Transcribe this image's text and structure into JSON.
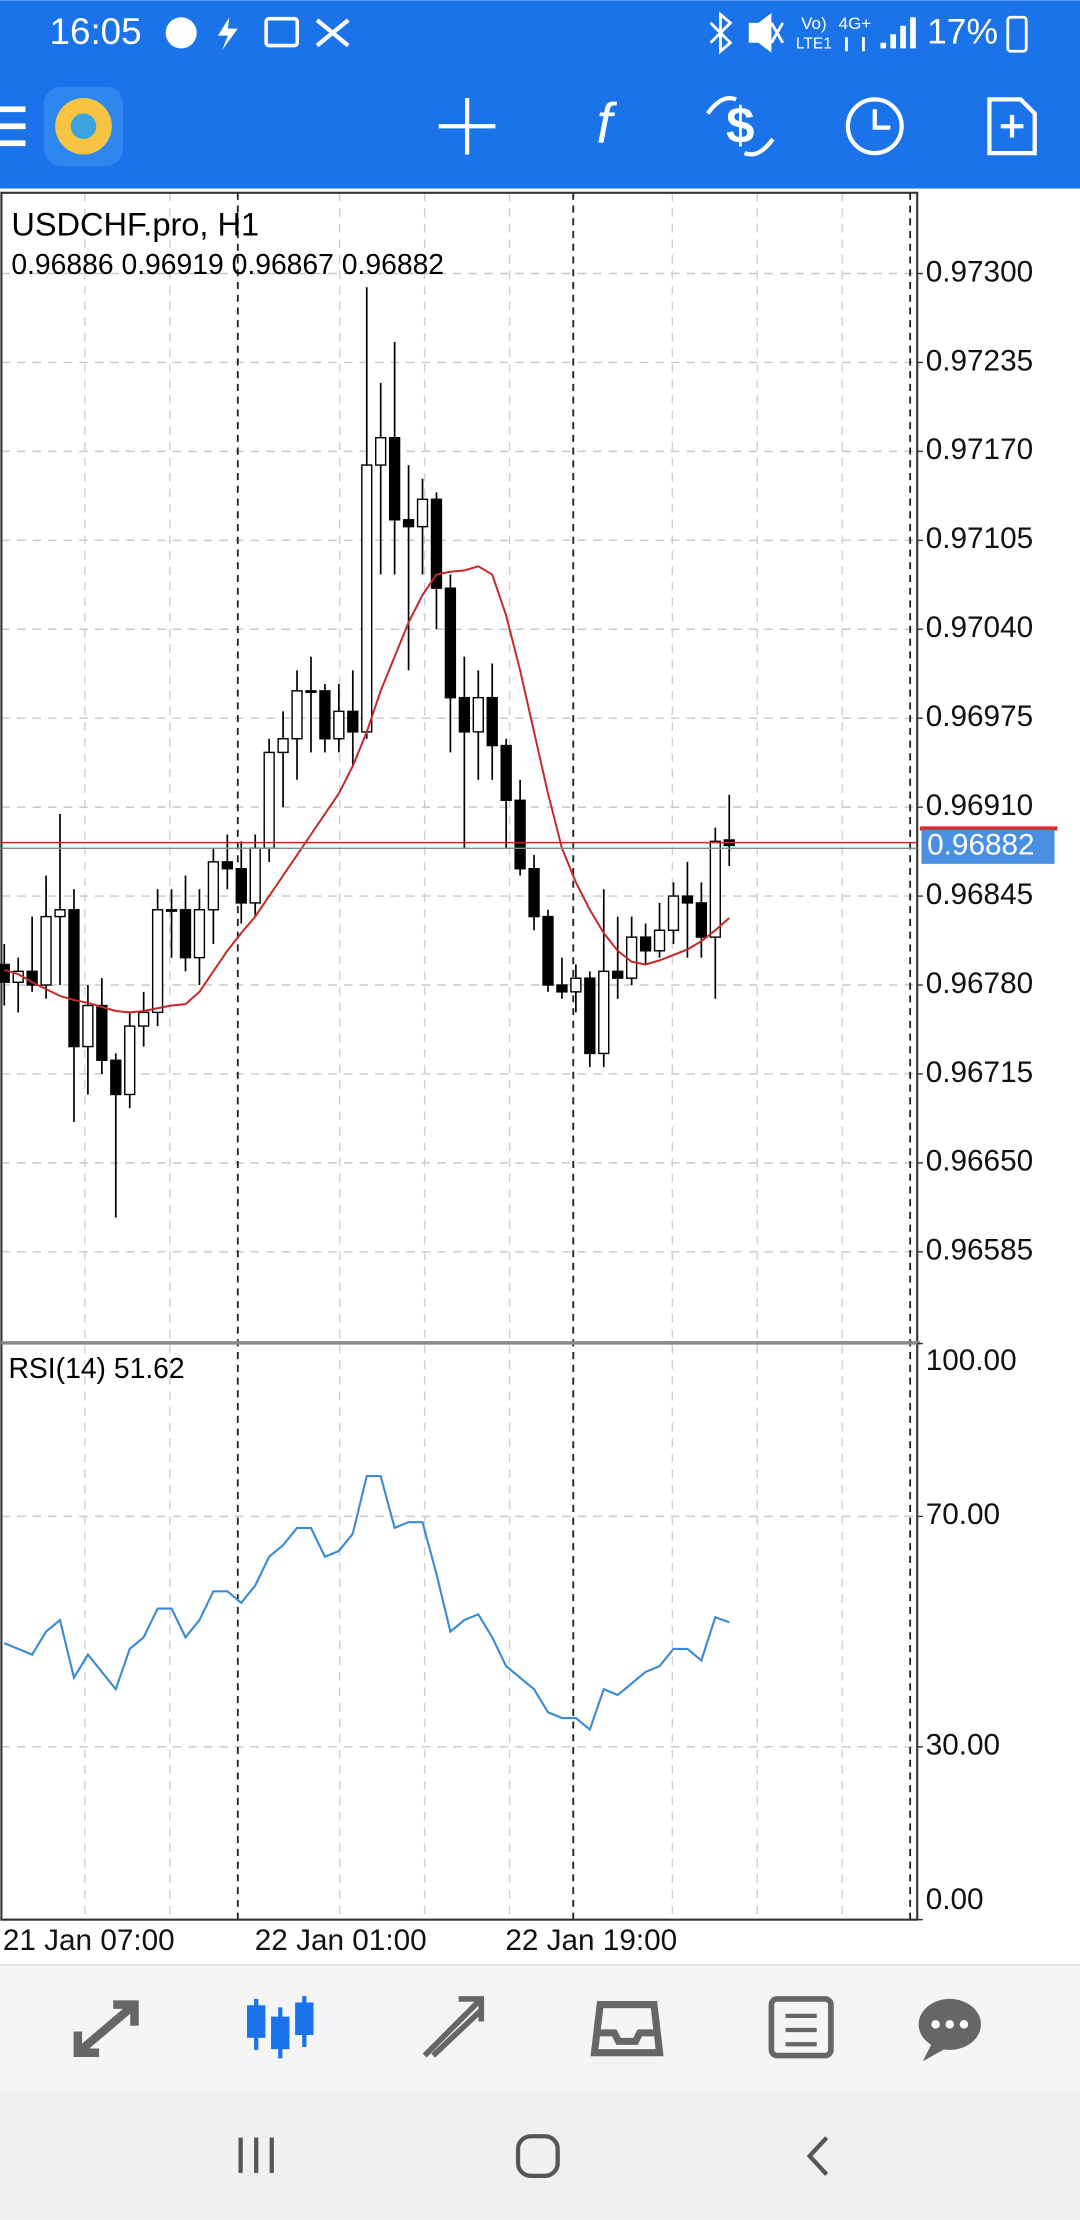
{
  "status_bar": {
    "time": "16:05",
    "volte": "Vo)",
    "lte": "LTE1",
    "network": "4G+",
    "battery": "17%"
  },
  "chart_data": [
    {
      "type": "candlestick",
      "title": "USDCHF.pro, H1",
      "subtitle": "0.96886 0.96919 0.96867 0.96882",
      "up_color": "#ffffff",
      "down_color": "#000000",
      "ma_color": "#c62828",
      "ohlc": [
        [
          0.96795,
          0.9681,
          0.96765,
          0.96782
        ],
        [
          0.96782,
          0.968,
          0.9676,
          0.9679
        ],
        [
          0.9679,
          0.9683,
          0.96775,
          0.9678
        ],
        [
          0.9678,
          0.9686,
          0.9677,
          0.9683
        ],
        [
          0.9683,
          0.96905,
          0.9678,
          0.96835
        ],
        [
          0.96835,
          0.9685,
          0.9668,
          0.96735
        ],
        [
          0.96735,
          0.9678,
          0.967,
          0.96765
        ],
        [
          0.96765,
          0.96785,
          0.96715,
          0.96725
        ],
        [
          0.96725,
          0.9673,
          0.9661,
          0.967
        ],
        [
          0.967,
          0.9676,
          0.9669,
          0.9675
        ],
        [
          0.9675,
          0.96775,
          0.96735,
          0.9676
        ],
        [
          0.9676,
          0.9685,
          0.9675,
          0.96835
        ],
        [
          0.96835,
          0.9685,
          0.968,
          0.96835
        ],
        [
          0.96835,
          0.9686,
          0.9679,
          0.968
        ],
        [
          0.968,
          0.9685,
          0.9678,
          0.96835
        ],
        [
          0.96835,
          0.9688,
          0.9681,
          0.9687
        ],
        [
          0.9687,
          0.9689,
          0.9685,
          0.96865
        ],
        [
          0.96865,
          0.96885,
          0.96825,
          0.9684
        ],
        [
          0.9684,
          0.9689,
          0.9683,
          0.9688
        ],
        [
          0.9688,
          0.9696,
          0.9687,
          0.9695
        ],
        [
          0.9695,
          0.9698,
          0.9691,
          0.9696
        ],
        [
          0.9696,
          0.9701,
          0.9693,
          0.96995
        ],
        [
          0.96995,
          0.9702,
          0.9695,
          0.96995
        ],
        [
          0.96995,
          0.97,
          0.9695,
          0.9696
        ],
        [
          0.9696,
          0.97,
          0.9695,
          0.9698
        ],
        [
          0.9698,
          0.9701,
          0.9694,
          0.96965
        ],
        [
          0.96965,
          0.9729,
          0.9696,
          0.9716
        ],
        [
          0.9716,
          0.9722,
          0.9708,
          0.9718
        ],
        [
          0.9718,
          0.9725,
          0.9708,
          0.9712
        ],
        [
          0.9712,
          0.9716,
          0.9701,
          0.97115
        ],
        [
          0.97115,
          0.9715,
          0.9708,
          0.97135
        ],
        [
          0.97135,
          0.9714,
          0.9704,
          0.9707
        ],
        [
          0.9707,
          0.9708,
          0.9695,
          0.9699
        ],
        [
          0.9699,
          0.9702,
          0.9688,
          0.96965
        ],
        [
          0.96965,
          0.9701,
          0.9693,
          0.9699
        ],
        [
          0.9699,
          0.97015,
          0.9693,
          0.96955
        ],
        [
          0.96955,
          0.9696,
          0.9688,
          0.96915
        ],
        [
          0.96915,
          0.9693,
          0.9686,
          0.96865
        ],
        [
          0.96865,
          0.96875,
          0.9682,
          0.9683
        ],
        [
          0.9683,
          0.96835,
          0.96775,
          0.9678
        ],
        [
          0.9678,
          0.968,
          0.9677,
          0.96775
        ],
        [
          0.96775,
          0.96795,
          0.9676,
          0.96785
        ],
        [
          0.96785,
          0.9679,
          0.9672,
          0.9673
        ],
        [
          0.9673,
          0.9685,
          0.9672,
          0.9679
        ],
        [
          0.9679,
          0.9683,
          0.9677,
          0.96785
        ],
        [
          0.96785,
          0.9683,
          0.9678,
          0.96815
        ],
        [
          0.96815,
          0.96825,
          0.96795,
          0.96805
        ],
        [
          0.96805,
          0.9684,
          0.968,
          0.9682
        ],
        [
          0.9682,
          0.96855,
          0.9681,
          0.96845
        ],
        [
          0.96845,
          0.9687,
          0.968,
          0.9684
        ],
        [
          0.9684,
          0.96855,
          0.968,
          0.96815
        ],
        [
          0.96815,
          0.96895,
          0.9677,
          0.96885
        ],
        [
          0.96886,
          0.96919,
          0.96867,
          0.96882
        ]
      ],
      "ma_values": [
        0.96791,
        0.96788,
        0.96782,
        0.96777,
        0.96772,
        0.96769,
        0.96767,
        0.96764,
        0.96761,
        0.9676,
        0.96761,
        0.96763,
        0.96765,
        0.96766,
        0.96775,
        0.9679,
        0.96805,
        0.96818,
        0.9683,
        0.96845,
        0.9686,
        0.96875,
        0.9689,
        0.96905,
        0.9692,
        0.9694,
        0.96965,
        0.96995,
        0.9702,
        0.97045,
        0.97065,
        0.9708,
        0.97082,
        0.97083,
        0.97086,
        0.9708,
        0.9705,
        0.9701,
        0.96965,
        0.9692,
        0.9688,
        0.96855,
        0.96835,
        0.96818,
        0.96805,
        0.96797,
        0.96795,
        0.96798,
        0.96802,
        0.96806,
        0.96812,
        0.9682,
        0.96829
      ],
      "current_price": 0.96882,
      "ylim": [
        0.96519,
        0.97359
      ],
      "yticks": [
        {
          "value": 0.973,
          "label": "0.97300"
        },
        {
          "value": 0.97235,
          "label": "0.97235"
        },
        {
          "value": 0.9717,
          "label": "0.97170"
        },
        {
          "value": 0.97105,
          "label": "0.97105"
        },
        {
          "value": 0.9704,
          "label": "0.97040"
        },
        {
          "value": 0.96975,
          "label": "0.96975"
        },
        {
          "value": 0.9691,
          "label": "0.96910"
        },
        {
          "value": 0.96845,
          "label": "0.96845"
        },
        {
          "value": 0.9678,
          "label": "0.96780"
        },
        {
          "value": 0.96715,
          "label": "0.96715"
        },
        {
          "value": 0.9665,
          "label": "0.96650"
        },
        {
          "value": 0.96585,
          "label": "0.96585"
        }
      ],
      "grid": true
    },
    {
      "type": "line",
      "title": "RSI(14) 51.62",
      "color": "#3a8ad6",
      "values": [
        48,
        47,
        46,
        50,
        52,
        42,
        46,
        43,
        40,
        47,
        49,
        54,
        54,
        49,
        52,
        57,
        57,
        55,
        58,
        63,
        65,
        68,
        68,
        63,
        64,
        67,
        77,
        77,
        68,
        69,
        69,
        60,
        50,
        52,
        53,
        49,
        44,
        42,
        40,
        36,
        35,
        35,
        33,
        40,
        39,
        41,
        43,
        44,
        47,
        47,
        45,
        52.5,
        51.62
      ],
      "ylim": [
        0,
        100
      ],
      "yticks": [
        {
          "value": 100,
          "label": "100.00"
        },
        {
          "value": 70,
          "label": "70.00"
        },
        {
          "value": 30,
          "label": "30.00"
        },
        {
          "value": 0,
          "label": "0.00"
        }
      ],
      "grid": true
    }
  ],
  "time_labels": [
    "21 Jan 07:00",
    "22 Jan 01:00",
    "22 Jan 19:00"
  ]
}
